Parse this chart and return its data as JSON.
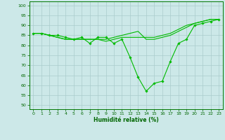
{
  "title": "",
  "xlabel": "Humidité relative (%)",
  "ylabel": "",
  "background_color": "#cce8e8",
  "grid_color": "#aacccc",
  "line_color": "#00bb00",
  "marker_color": "#00bb00",
  "xlim": [
    -0.5,
    23.5
  ],
  "ylim": [
    48,
    102
  ],
  "yticks": [
    50,
    55,
    60,
    65,
    70,
    75,
    80,
    85,
    90,
    95,
    100
  ],
  "xticks": [
    0,
    1,
    2,
    3,
    4,
    5,
    6,
    7,
    8,
    9,
    10,
    11,
    12,
    13,
    14,
    15,
    16,
    17,
    18,
    19,
    20,
    21,
    22,
    23
  ],
  "series": [
    [
      86,
      86,
      85,
      85,
      84,
      83,
      84,
      81,
      84,
      84,
      81,
      83,
      74,
      64,
      57,
      61,
      62,
      72,
      81,
      83,
      90,
      91,
      92,
      93
    ],
    [
      86,
      86,
      85,
      84,
      83,
      83,
      83,
      83,
      83,
      83,
      84,
      85,
      86,
      87,
      83,
      83,
      84,
      85,
      87,
      89,
      91,
      92,
      93,
      93
    ],
    [
      86,
      86,
      85,
      84,
      83,
      83,
      83,
      83,
      83,
      82,
      83,
      84,
      84,
      84,
      84,
      84,
      85,
      86,
      88,
      90,
      91,
      92,
      93,
      93
    ]
  ]
}
